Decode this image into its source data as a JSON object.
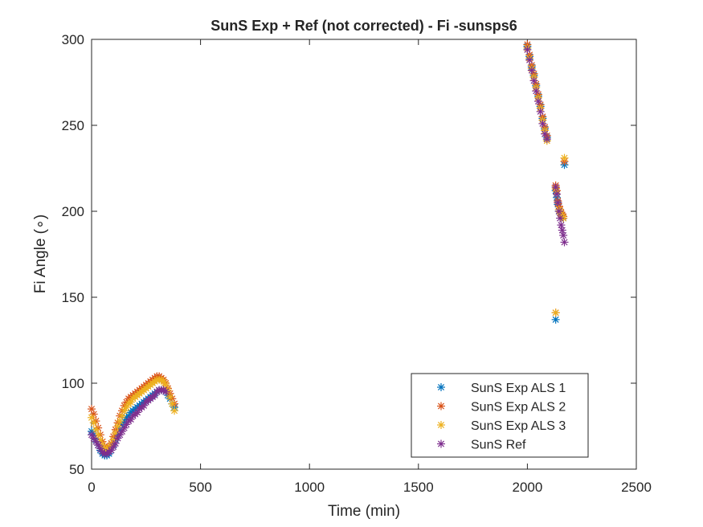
{
  "chart_data": {
    "type": "scatter",
    "title": "SunS Exp + Ref  (not corrected) - Fi -sunsps6",
    "xlabel": "Time (min)",
    "ylabel": "Fi Angle (∘)",
    "xlim": [
      0,
      2500
    ],
    "ylim": [
      50,
      300
    ],
    "xticks": [
      0,
      500,
      1000,
      1500,
      2000,
      2500
    ],
    "yticks": [
      50,
      100,
      150,
      200,
      250,
      300
    ],
    "xtick_labels": [
      "0",
      "500",
      "1000",
      "1500",
      "2000",
      "2500"
    ],
    "ytick_labels": [
      "50",
      "100",
      "150",
      "200",
      "250",
      "300"
    ],
    "grid": false,
    "legend_position": "bottom-right",
    "marker": "*",
    "series": [
      {
        "name": "SunS Exp ALS 1",
        "color": "#0072BD",
        "points": [
          [
            0,
            72
          ],
          [
            10,
            70
          ],
          [
            20,
            67
          ],
          [
            30,
            64
          ],
          [
            40,
            61
          ],
          [
            50,
            59
          ],
          [
            60,
            58
          ],
          [
            70,
            58
          ],
          [
            80,
            59
          ],
          [
            90,
            61
          ],
          [
            100,
            64
          ],
          [
            110,
            67
          ],
          [
            120,
            70
          ],
          [
            130,
            73
          ],
          [
            140,
            76
          ],
          [
            150,
            78
          ],
          [
            160,
            80
          ],
          [
            170,
            81
          ],
          [
            180,
            83
          ],
          [
            190,
            84
          ],
          [
            200,
            85
          ],
          [
            210,
            86
          ],
          [
            220,
            87
          ],
          [
            230,
            88
          ],
          [
            240,
            89
          ],
          [
            250,
            90
          ],
          [
            260,
            91
          ],
          [
            270,
            92
          ],
          [
            280,
            93
          ],
          [
            290,
            94
          ],
          [
            300,
            95
          ],
          [
            310,
            96
          ],
          [
            320,
            96
          ],
          [
            330,
            96
          ],
          [
            340,
            95
          ],
          [
            350,
            93
          ],
          [
            360,
            91
          ],
          [
            370,
            88
          ],
          [
            380,
            86
          ],
          [
            2000,
            296
          ],
          [
            2010,
            290
          ],
          [
            2020,
            284
          ],
          [
            2030,
            279
          ],
          [
            2040,
            273
          ],
          [
            2050,
            267
          ],
          [
            2060,
            261
          ],
          [
            2070,
            254
          ],
          [
            2080,
            248
          ],
          [
            2090,
            243
          ],
          [
            2130,
            137
          ],
          [
            2130,
            212
          ],
          [
            2135,
            208
          ],
          [
            2140,
            204
          ],
          [
            2145,
            200
          ],
          [
            2150,
            200
          ],
          [
            2155,
            198
          ],
          [
            2160,
            197
          ],
          [
            2165,
            196
          ],
          [
            2170,
            227
          ]
        ]
      },
      {
        "name": "SunS Exp ALS 2",
        "color": "#D95319",
        "points": [
          [
            0,
            85
          ],
          [
            10,
            82
          ],
          [
            20,
            78
          ],
          [
            30,
            74
          ],
          [
            40,
            70
          ],
          [
            50,
            66
          ],
          [
            60,
            63
          ],
          [
            70,
            62
          ],
          [
            80,
            63
          ],
          [
            90,
            65
          ],
          [
            100,
            69
          ],
          [
            110,
            73
          ],
          [
            120,
            77
          ],
          [
            130,
            81
          ],
          [
            140,
            84
          ],
          [
            150,
            87
          ],
          [
            160,
            89
          ],
          [
            170,
            91
          ],
          [
            180,
            92
          ],
          [
            190,
            93
          ],
          [
            200,
            94
          ],
          [
            210,
            95
          ],
          [
            220,
            96
          ],
          [
            230,
            97
          ],
          [
            240,
            98
          ],
          [
            250,
            99
          ],
          [
            260,
            100
          ],
          [
            270,
            101
          ],
          [
            280,
            102
          ],
          [
            290,
            103
          ],
          [
            300,
            104
          ],
          [
            310,
            104
          ],
          [
            320,
            103
          ],
          [
            330,
            102
          ],
          [
            340,
            100
          ],
          [
            350,
            97
          ],
          [
            360,
            94
          ],
          [
            370,
            91
          ],
          [
            380,
            88
          ],
          [
            2000,
            297
          ],
          [
            2010,
            291
          ],
          [
            2020,
            285
          ],
          [
            2030,
            280
          ],
          [
            2040,
            274
          ],
          [
            2050,
            268
          ],
          [
            2060,
            262
          ],
          [
            2070,
            255
          ],
          [
            2080,
            249
          ],
          [
            2090,
            244
          ],
          [
            2130,
            141
          ],
          [
            2130,
            215
          ],
          [
            2135,
            212
          ],
          [
            2140,
            206
          ],
          [
            2145,
            203
          ],
          [
            2150,
            201
          ],
          [
            2155,
            199
          ],
          [
            2160,
            198
          ],
          [
            2165,
            197
          ],
          [
            2170,
            229
          ]
        ]
      },
      {
        "name": "SunS Exp ALS 3",
        "color": "#EDB120",
        "points": [
          [
            0,
            80
          ],
          [
            10,
            77
          ],
          [
            20,
            73
          ],
          [
            30,
            70
          ],
          [
            40,
            67
          ],
          [
            50,
            64
          ],
          [
            60,
            62
          ],
          [
            70,
            61
          ],
          [
            80,
            62
          ],
          [
            90,
            64
          ],
          [
            100,
            67
          ],
          [
            110,
            71
          ],
          [
            120,
            75
          ],
          [
            130,
            78
          ],
          [
            140,
            81
          ],
          [
            150,
            84
          ],
          [
            160,
            86
          ],
          [
            170,
            88
          ],
          [
            180,
            89
          ],
          [
            190,
            91
          ],
          [
            200,
            92
          ],
          [
            210,
            93
          ],
          [
            220,
            94
          ],
          [
            230,
            95
          ],
          [
            240,
            96
          ],
          [
            250,
            97
          ],
          [
            260,
            98
          ],
          [
            270,
            99
          ],
          [
            280,
            100
          ],
          [
            290,
            101
          ],
          [
            300,
            102
          ],
          [
            310,
            102
          ],
          [
            320,
            102
          ],
          [
            330,
            101
          ],
          [
            340,
            99
          ],
          [
            350,
            96
          ],
          [
            360,
            92
          ],
          [
            370,
            88
          ],
          [
            380,
            84
          ],
          [
            2000,
            295
          ],
          [
            2010,
            289
          ],
          [
            2020,
            283
          ],
          [
            2030,
            278
          ],
          [
            2040,
            272
          ],
          [
            2050,
            266
          ],
          [
            2060,
            260
          ],
          [
            2070,
            253
          ],
          [
            2080,
            247
          ],
          [
            2090,
            241
          ],
          [
            2130,
            141
          ],
          [
            2130,
            213
          ],
          [
            2135,
            210
          ],
          [
            2140,
            205
          ],
          [
            2145,
            201
          ],
          [
            2150,
            200
          ],
          [
            2155,
            198
          ],
          [
            2160,
            197
          ],
          [
            2165,
            196
          ],
          [
            2170,
            231
          ]
        ]
      },
      {
        "name": "SunS Ref",
        "color": "#7E2F8E",
        "points": [
          [
            0,
            70
          ],
          [
            10,
            68
          ],
          [
            20,
            66
          ],
          [
            30,
            64
          ],
          [
            40,
            62
          ],
          [
            50,
            60
          ],
          [
            60,
            59
          ],
          [
            70,
            59
          ],
          [
            80,
            60
          ],
          [
            90,
            61
          ],
          [
            100,
            63
          ],
          [
            110,
            65
          ],
          [
            120,
            68
          ],
          [
            130,
            70
          ],
          [
            140,
            72
          ],
          [
            150,
            74
          ],
          [
            160,
            76
          ],
          [
            170,
            78
          ],
          [
            180,
            79
          ],
          [
            190,
            81
          ],
          [
            200,
            82
          ],
          [
            210,
            83
          ],
          [
            220,
            85
          ],
          [
            230,
            86
          ],
          [
            240,
            87
          ],
          [
            250,
            89
          ],
          [
            260,
            90
          ],
          [
            270,
            91
          ],
          [
            280,
            92
          ],
          [
            290,
            93
          ],
          [
            300,
            95
          ],
          [
            310,
            96
          ],
          [
            320,
            96
          ],
          [
            330,
            96
          ],
          [
            340,
            95
          ],
          [
            2000,
            294
          ],
          [
            2010,
            288
          ],
          [
            2020,
            282
          ],
          [
            2030,
            276
          ],
          [
            2040,
            270
          ],
          [
            2050,
            264
          ],
          [
            2060,
            258
          ],
          [
            2070,
            251
          ],
          [
            2080,
            245
          ],
          [
            2090,
            242
          ],
          [
            2130,
            214
          ],
          [
            2135,
            210
          ],
          [
            2140,
            205
          ],
          [
            2145,
            200
          ],
          [
            2150,
            196
          ],
          [
            2155,
            192
          ],
          [
            2160,
            189
          ],
          [
            2165,
            186
          ],
          [
            2170,
            182
          ]
        ]
      }
    ]
  }
}
